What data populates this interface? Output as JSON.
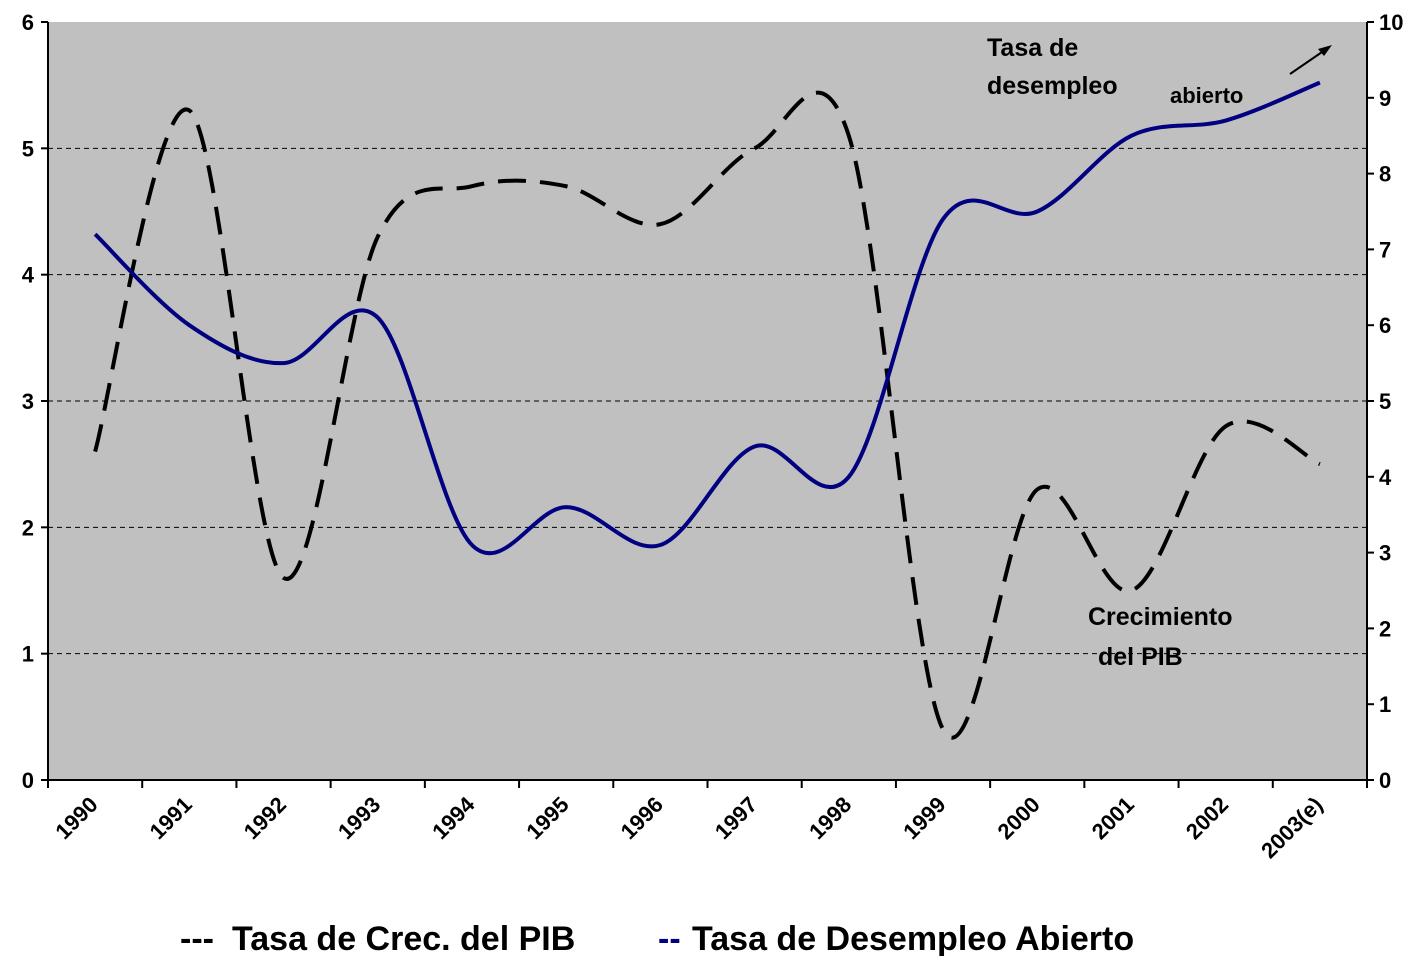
{
  "chart_data": {
    "type": "line",
    "categories": [
      "1990",
      "1991",
      "1992",
      "1993",
      "1994",
      "1995",
      "1996",
      "1997",
      "1998",
      "1999",
      "2000",
      "2001",
      "2002",
      "2003(e)"
    ],
    "series": [
      {
        "name": "Tasa de Crec. del PIB",
        "legend_marker": "---",
        "color": "#000000",
        "axis": "y",
        "dashed": true,
        "values": [
          2.6,
          5.3,
          1.6,
          4.3,
          4.7,
          4.7,
          4.4,
          5.0,
          5.1,
          0.4,
          2.3,
          1.5,
          2.8,
          2.5
        ]
      },
      {
        "name": "Tasa de Desempleo Abierto",
        "legend_marker": "--",
        "color": "#000080",
        "axis": "y2",
        "dashed": false,
        "values": [
          7.2,
          6.0,
          5.5,
          6.1,
          3.1,
          3.6,
          3.1,
          4.4,
          4.0,
          7.4,
          7.5,
          8.5,
          8.7,
          9.2
        ]
      }
    ],
    "ylim": [
      0,
      6
    ],
    "yticks": [
      0,
      1,
      2,
      3,
      4,
      5,
      6
    ],
    "y2lim": [
      0,
      10
    ],
    "y2ticks": [
      0,
      1,
      2,
      3,
      4,
      5,
      6,
      7,
      8,
      9,
      10
    ],
    "grid": true,
    "annotations": [
      "Tasa de",
      "desempleo",
      "abierto",
      "Crecimiento",
      "del PIB"
    ]
  }
}
